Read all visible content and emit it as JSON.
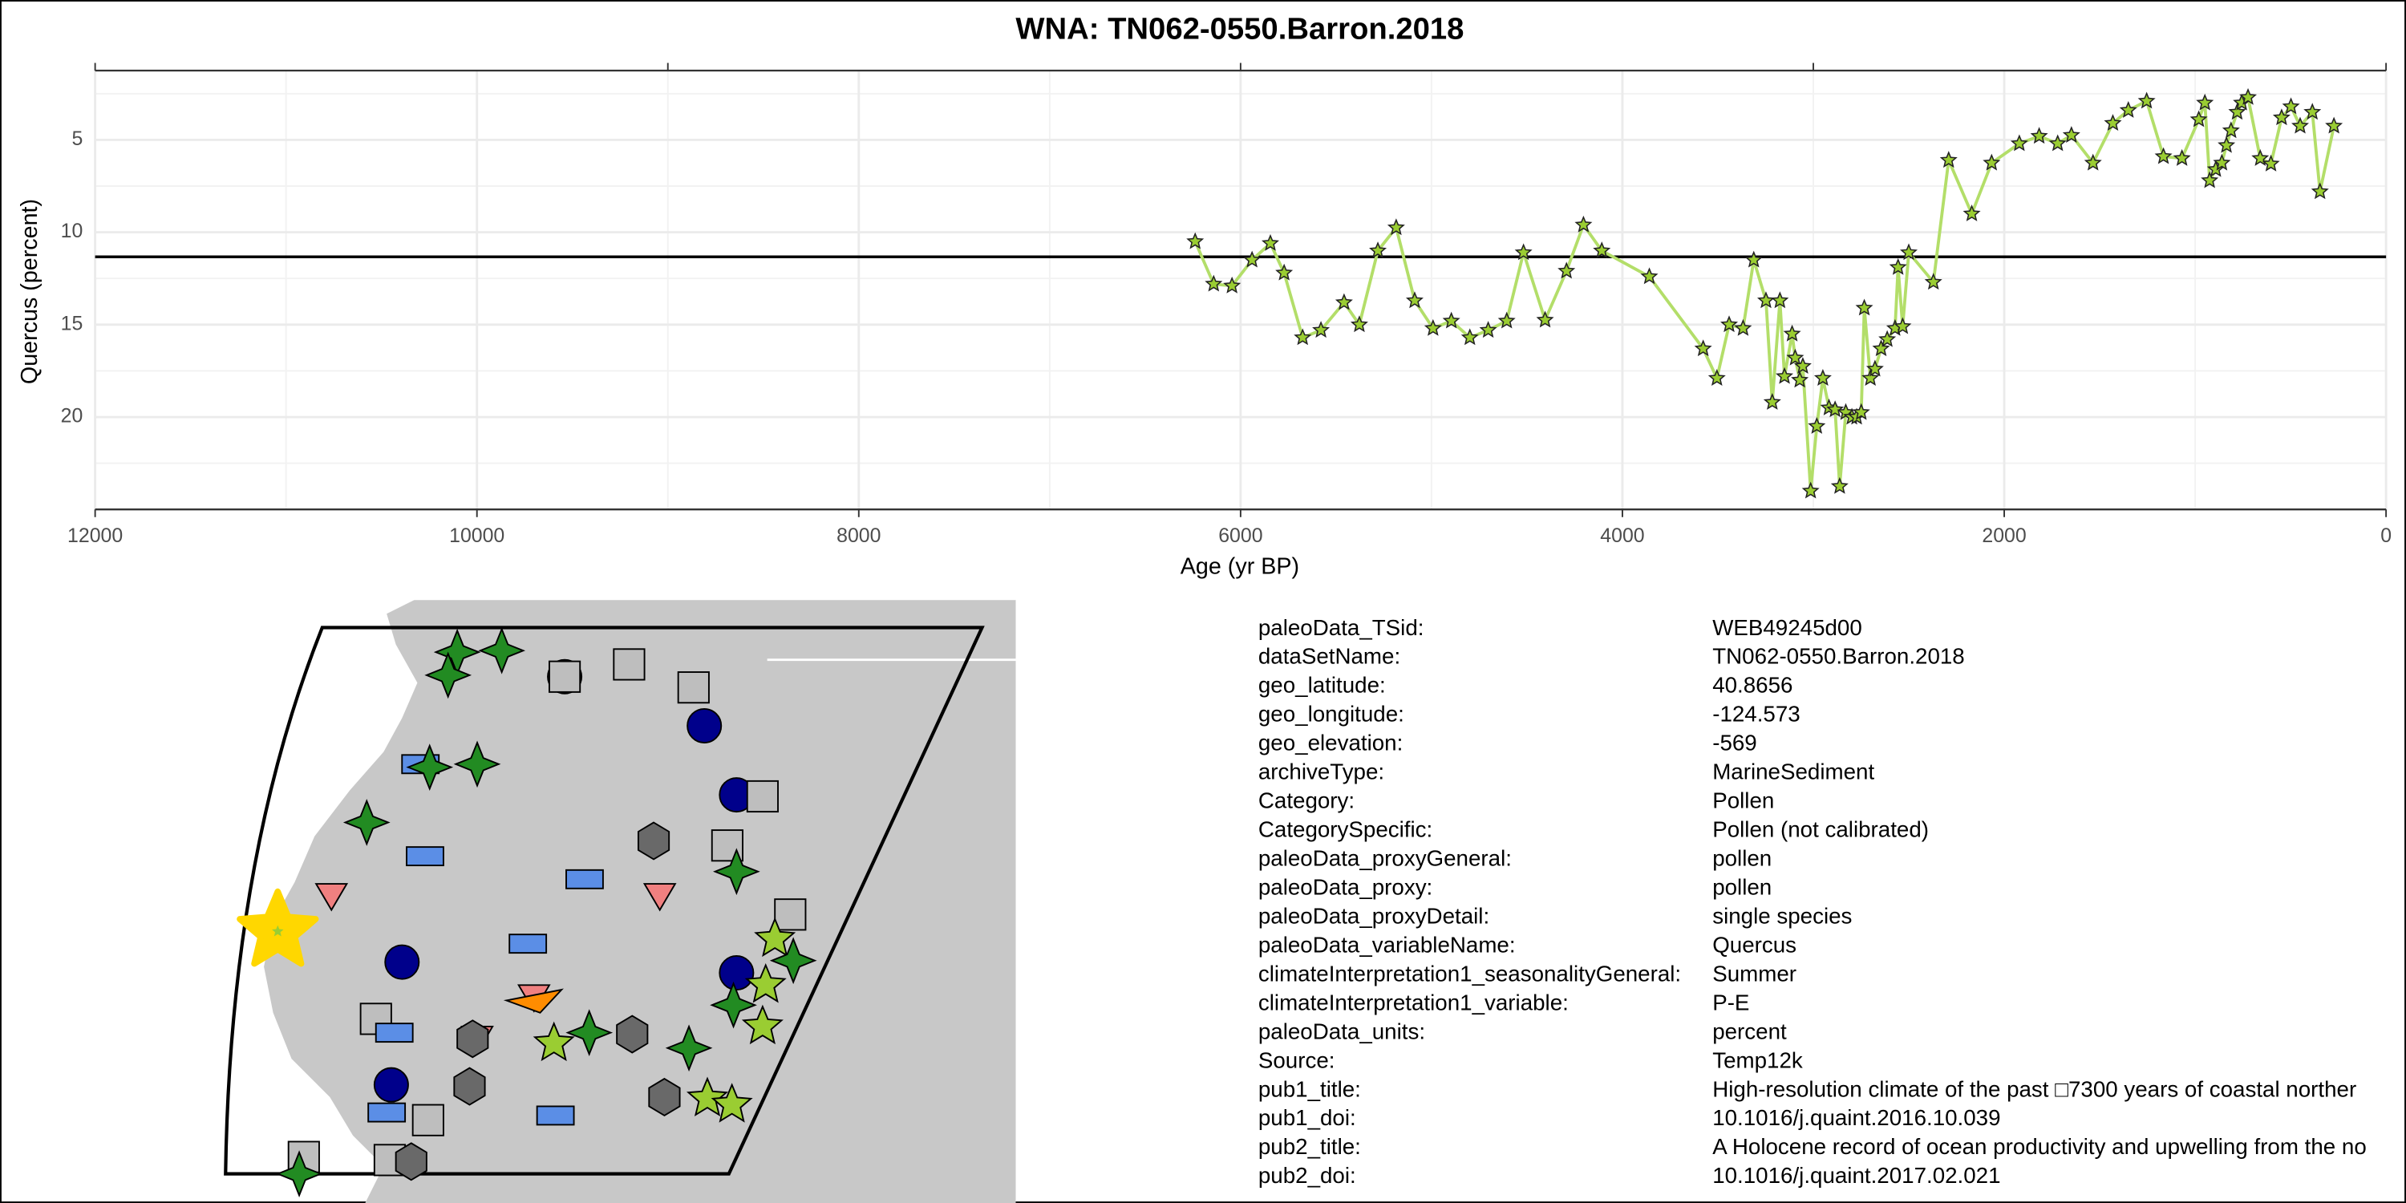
{
  "chart_data": {
    "type": "line",
    "title": "WNA: TN062-0550.Barron.2018",
    "x_label": "Age (yr BP)",
    "y_label": "Quercus (percent)",
    "x": [
      6238,
      6141,
      6045,
      5940,
      5844,
      5772,
      5675,
      5579,
      5458,
      5378,
      5281,
      5185,
      5088,
      4992,
      4896,
      4799,
      4703,
      4606,
      4518,
      4405,
      4293,
      4204,
      4108,
      3859,
      3577,
      3505,
      3441,
      3368,
      3312,
      3248,
      3215,
      3175,
      3151,
      3111,
      3095,
      3071,
      3055,
      3014,
      2982,
      2950,
      2918,
      2886,
      2862,
      2830,
      2798,
      2773,
      2749,
      2733,
      2701,
      2677,
      2645,
      2613,
      2572,
      2556,
      2532,
      2500,
      2371,
      2291,
      2170,
      2066,
      1921,
      1817,
      1720,
      1648,
      1535,
      1431,
      1350,
      1254,
      1166,
      1069,
      981,
      949,
      924,
      892,
      860,
      836,
      812,
      780,
      756,
      723,
      659,
      603,
      547,
      498,
      450,
      386,
      346,
      273
    ],
    "series": [
      {
        "color": "#b3de69",
        "marker_color": "#9acd32",
        "values": [
          10.5,
          12.8,
          12.9,
          11.5,
          10.6,
          12.2,
          15.7,
          15.3,
          13.8,
          15.0,
          11.0,
          9.75,
          13.7,
          15.2,
          14.8,
          15.7,
          15.3,
          14.8,
          11.1,
          14.75,
          12.1,
          9.6,
          11.0,
          12.4,
          16.3,
          17.9,
          15.0,
          15.2,
          11.5,
          13.7,
          19.2,
          13.7,
          17.8,
          15.5,
          16.8,
          18.0,
          17.25,
          24.0,
          20.5,
          17.9,
          19.5,
          19.6,
          23.75,
          19.75,
          20.0,
          20.0,
          19.75,
          14.1,
          17.9,
          17.4,
          16.3,
          15.8,
          15.2,
          11.9,
          15.1,
          11.1,
          12.7,
          6.1,
          9.0,
          6.25,
          5.2,
          4.8,
          5.2,
          4.75,
          6.25,
          4.1,
          3.4,
          2.9,
          5.9,
          6.0,
          3.9,
          3.0,
          7.2,
          6.6,
          6.25,
          5.3,
          4.5,
          3.5,
          3.0,
          2.7,
          6.0,
          6.3,
          3.8,
          3.2,
          4.25,
          3.5,
          7.8,
          4.25
        ]
      }
    ],
    "xlim": [
      12000,
      0
    ],
    "xticks": [
      12000,
      10000,
      8000,
      6000,
      4000,
      2000,
      0
    ],
    "top_xticks": [
      12000,
      9000,
      6000,
      3000,
      0
    ],
    "ylim": [
      1.25,
      25
    ],
    "y_reversed": true,
    "yticks": [
      5,
      10,
      15,
      20
    ],
    "hline": 11.33,
    "hline_color": "#000000",
    "grid": true
  },
  "metadata": {
    "rows": [
      [
        "paleoData_TSid:",
        "WEB49245d00"
      ],
      [
        "dataSetName:",
        "TN062-0550.Barron.2018"
      ],
      [
        "geo_latitude:",
        "40.8656"
      ],
      [
        "geo_longitude:",
        "-124.573"
      ],
      [
        "geo_elevation:",
        "-569"
      ],
      [
        "archiveType:",
        "MarineSediment"
      ],
      [
        "Category:",
        "Pollen"
      ],
      [
        "CategorySpecific:",
        "Pollen (not calibrated)"
      ],
      [
        "paleoData_proxyGeneral:",
        "pollen"
      ],
      [
        "paleoData_proxy:",
        "pollen"
      ],
      [
        "paleoData_proxyDetail:",
        "single species"
      ],
      [
        "paleoData_variableName:",
        "Quercus"
      ],
      [
        "climateInterpretation1_seasonalityGeneral:",
        "Summer"
      ],
      [
        "climateInterpretation1_variable:",
        "P-E"
      ],
      [
        "paleoData_units:",
        "percent"
      ],
      [
        "Source:",
        "Temp12k"
      ],
      [
        "pub1_title:",
        "High-resolution climate of the past □7300 years of coastal norther"
      ],
      [
        "pub1_doi:",
        "10.1016/j.quaint.2016.10.039"
      ],
      [
        "pub2_title:",
        "A Holocene record of ocean productivity and upwelling from the no"
      ],
      [
        "pub2_doi:",
        "10.1016/j.quaint.2017.02.021"
      ]
    ]
  }
}
